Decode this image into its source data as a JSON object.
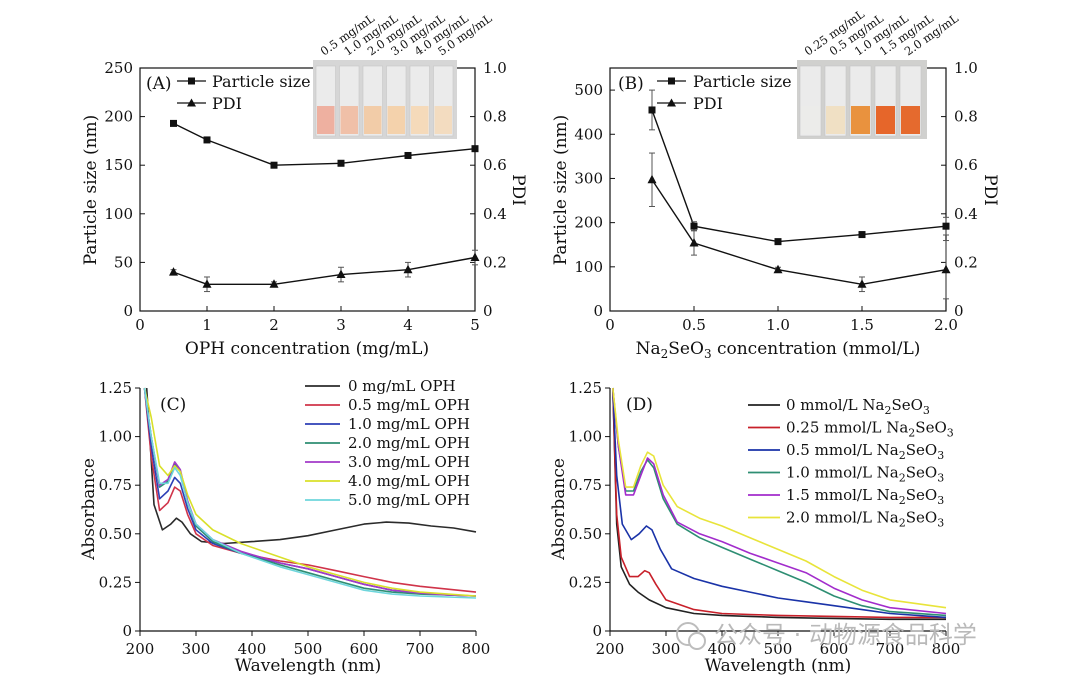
{
  "watermark": "公众号 · 动物源食品科学",
  "chart_data": [
    {
      "id": "A",
      "type": "line",
      "panel_label": "(A)",
      "xlabel": "OPH concentration (mg/mL)",
      "ylabel_left": "Particle size (nm)",
      "ylabel_right": "PDI",
      "xlim": [
        0,
        5
      ],
      "ylim_left": [
        0,
        250
      ],
      "ylim_right": [
        0,
        1.0
      ],
      "x_ticks": [
        "0",
        "1",
        "2",
        "3",
        "4",
        "5"
      ],
      "y_ticks_left": [
        "0",
        "50",
        "100",
        "150",
        "200",
        "250"
      ],
      "y_ticks_right": [
        "0",
        "0.2",
        "0.4",
        "0.6",
        "0.8",
        "1.0"
      ],
      "series": [
        {
          "name": "Particle size",
          "axis": "left",
          "marker": "square",
          "x": [
            0.5,
            1,
            2,
            3,
            4,
            5
          ],
          "values": [
            193,
            176,
            150,
            152,
            160,
            167
          ],
          "errors": [
            0,
            0,
            0,
            0,
            0,
            0
          ]
        },
        {
          "name": "PDI",
          "axis": "right",
          "marker": "triangle",
          "x": [
            0.5,
            1,
            2,
            3,
            4,
            5
          ],
          "values": [
            0.16,
            0.11,
            0.11,
            0.15,
            0.17,
            0.22
          ],
          "errors": [
            0.01,
            0.03,
            0.01,
            0.03,
            0.03,
            0.03
          ]
        }
      ],
      "legend": [
        "Particle size",
        "PDI"
      ],
      "inset_labels": [
        "0.5 mg/mL",
        "1.0 mg/mL",
        "2.0 mg/mL",
        "3.0 mg/mL",
        "4.0 mg/mL",
        "5.0 mg/mL"
      ],
      "inset_vial_colors": [
        "#eeb0a0",
        "#f0c0a8",
        "#f2cca8",
        "#f4d2ac",
        "#f5daba",
        "#f3dcc0"
      ]
    },
    {
      "id": "B",
      "type": "line",
      "panel_label": "(B)",
      "xlabel_parts": [
        "Na",
        "2",
        "SeO",
        "3",
        " concentration (mmol/L)"
      ],
      "ylabel_left": "Particle size (nm)",
      "ylabel_right": "PDI",
      "xlim": [
        0,
        2.0
      ],
      "ylim_left": [
        0,
        550
      ],
      "ylim_right": [
        0,
        1.0
      ],
      "x_ticks": [
        "0",
        "0.5",
        "1.0",
        "1.5",
        "2.0"
      ],
      "x_tick_values": [
        0,
        0.5,
        1.0,
        1.5,
        2.0
      ],
      "y_ticks_left": [
        "0",
        "100",
        "200",
        "300",
        "400",
        "500"
      ],
      "y_tick_left_values": [
        0,
        100,
        200,
        300,
        400,
        500
      ],
      "y_ticks_right": [
        "0",
        "0.2",
        "0.4",
        "0.6",
        "0.8",
        "1.0"
      ],
      "series": [
        {
          "name": "Particle size",
          "axis": "left",
          "marker": "square",
          "x": [
            0.25,
            0.5,
            1.0,
            1.5,
            2.0
          ],
          "values": [
            455,
            192,
            157,
            173,
            192
          ],
          "errors": [
            45,
            10,
            5,
            5,
            20
          ]
        },
        {
          "name": "PDI",
          "axis": "right",
          "marker": "triangle",
          "x": [
            0.25,
            0.5,
            1.0,
            1.5,
            2.0
          ],
          "values": [
            0.54,
            0.28,
            0.17,
            0.11,
            0.17
          ],
          "errors": [
            0.11,
            0.05,
            0.01,
            0.03,
            0.12
          ]
        }
      ],
      "legend": [
        "Particle size",
        "PDI"
      ],
      "inset_labels": [
        "0.25 mg/mL",
        "0.5 mg/mL",
        "1.0 mg/mL",
        "1.5 mg/mL",
        "2.0 mg/mL"
      ],
      "inset_vial_colors": [
        "#ececea",
        "#f0e0c4",
        "#e9923e",
        "#e6662a",
        "#e56a2e"
      ]
    },
    {
      "id": "C",
      "type": "line",
      "panel_label": "(C)",
      "xlabel": "Wavelength (nm)",
      "ylabel": "Absorbance",
      "xlim": [
        200,
        800
      ],
      "ylim": [
        0,
        1.25
      ],
      "x_ticks": [
        "200",
        "300",
        "400",
        "500",
        "600",
        "700",
        "800"
      ],
      "y_ticks": [
        "0",
        "0.25",
        "0.50",
        "0.75",
        "1.00",
        "1.25"
      ],
      "series": [
        {
          "name": "0 mg/mL OPH",
          "color": "#2b2b2b",
          "x": [
            212,
            225,
            240,
            255,
            265,
            275,
            290,
            310,
            350,
            400,
            450,
            500,
            550,
            600,
            640,
            680,
            720,
            760,
            800
          ],
          "values": [
            1.25,
            0.65,
            0.52,
            0.55,
            0.58,
            0.56,
            0.5,
            0.46,
            0.45,
            0.46,
            0.47,
            0.49,
            0.52,
            0.55,
            0.56,
            0.555,
            0.54,
            0.53,
            0.51
          ]
        },
        {
          "name": "0.5 mg/mL OPH",
          "color": "#d0344a",
          "x": [
            208,
            220,
            235,
            250,
            262,
            272,
            285,
            300,
            330,
            380,
            450,
            500,
            550,
            600,
            650,
            700,
            750,
            800
          ],
          "values": [
            1.25,
            0.9,
            0.62,
            0.66,
            0.74,
            0.72,
            0.6,
            0.5,
            0.44,
            0.4,
            0.36,
            0.34,
            0.31,
            0.28,
            0.25,
            0.23,
            0.215,
            0.2
          ]
        },
        {
          "name": "1.0 mg/mL OPH",
          "color": "#2d3fb6",
          "x": [
            208,
            220,
            235,
            250,
            262,
            272,
            285,
            300,
            330,
            380,
            450,
            500,
            550,
            600,
            650,
            700,
            750,
            800
          ],
          "values": [
            1.25,
            0.95,
            0.68,
            0.72,
            0.79,
            0.76,
            0.63,
            0.52,
            0.45,
            0.4,
            0.35,
            0.32,
            0.28,
            0.24,
            0.21,
            0.195,
            0.185,
            0.18
          ]
        },
        {
          "name": "2.0 mg/mL OPH",
          "color": "#2e8e73",
          "x": [
            208,
            220,
            235,
            250,
            262,
            272,
            285,
            300,
            330,
            380,
            450,
            500,
            550,
            600,
            650,
            700,
            750,
            800
          ],
          "values": [
            1.25,
            1.0,
            0.74,
            0.77,
            0.86,
            0.82,
            0.66,
            0.54,
            0.46,
            0.4,
            0.34,
            0.3,
            0.26,
            0.22,
            0.2,
            0.19,
            0.185,
            0.18
          ]
        },
        {
          "name": "3.0 mg/mL OPH",
          "color": "#a33ac8",
          "x": [
            208,
            220,
            235,
            250,
            262,
            272,
            285,
            300,
            330,
            380,
            450,
            500,
            550,
            600,
            650,
            700,
            750,
            800
          ],
          "values": [
            1.25,
            1.0,
            0.75,
            0.78,
            0.87,
            0.83,
            0.67,
            0.55,
            0.47,
            0.41,
            0.35,
            0.32,
            0.28,
            0.24,
            0.21,
            0.195,
            0.185,
            0.18
          ]
        },
        {
          "name": "4.0 mg/mL OPH",
          "color": "#d9e02a",
          "x": [
            208,
            220,
            235,
            250,
            262,
            272,
            285,
            300,
            330,
            380,
            450,
            500,
            550,
            600,
            650,
            700,
            750,
            800
          ],
          "values": [
            1.25,
            1.1,
            0.85,
            0.8,
            0.85,
            0.82,
            0.7,
            0.6,
            0.52,
            0.45,
            0.38,
            0.33,
            0.29,
            0.25,
            0.22,
            0.2,
            0.19,
            0.18
          ]
        },
        {
          "name": "5.0 mg/mL OPH",
          "color": "#6ed6dc",
          "x": [
            208,
            220,
            235,
            250,
            262,
            272,
            285,
            300,
            330,
            380,
            450,
            500,
            550,
            600,
            650,
            700,
            750,
            800
          ],
          "values": [
            1.25,
            1.0,
            0.76,
            0.76,
            0.84,
            0.8,
            0.66,
            0.55,
            0.47,
            0.4,
            0.33,
            0.29,
            0.25,
            0.21,
            0.19,
            0.18,
            0.175,
            0.17
          ]
        }
      ],
      "legend": [
        "0 mg/mL OPH",
        "0.5 mg/mL OPH",
        "1.0 mg/mL OPH",
        "2.0 mg/mL OPH",
        "3.0 mg/mL OPH",
        "4.0 mg/mL OPH",
        "5.0 mg/mL OPH"
      ]
    },
    {
      "id": "D",
      "type": "line",
      "panel_label": "(D)",
      "xlabel": "Wavelength (nm)",
      "ylabel": "Absorbance",
      "xlim": [
        200,
        800
      ],
      "ylim": [
        0,
        1.25
      ],
      "x_ticks": [
        "200",
        "300",
        "400",
        "500",
        "600",
        "700",
        "800"
      ],
      "y_ticks": [
        "0",
        "0.25",
        "0.50",
        "0.75",
        "1.00",
        "1.25"
      ],
      "series": [
        {
          "name": "0 mmol/L Na2SeO3",
          "legend_parts": [
            "0 mmol/L Na",
            "2",
            "SeO",
            "3"
          ],
          "color": "#222222",
          "x": [
            205,
            212,
            220,
            235,
            250,
            270,
            300,
            350,
            400,
            450,
            500,
            600,
            700,
            800
          ],
          "values": [
            1.25,
            0.55,
            0.33,
            0.24,
            0.2,
            0.16,
            0.12,
            0.09,
            0.08,
            0.075,
            0.07,
            0.065,
            0.06,
            0.06
          ]
        },
        {
          "name": "0.25 mmol/L Na2SeO3",
          "legend_parts": [
            "0.25 mmol/L Na",
            "2",
            "SeO",
            "3"
          ],
          "color": "#c8202a",
          "x": [
            205,
            212,
            220,
            235,
            250,
            262,
            270,
            282,
            300,
            350,
            400,
            450,
            500,
            600,
            700,
            800
          ],
          "values": [
            1.25,
            0.6,
            0.38,
            0.28,
            0.28,
            0.31,
            0.3,
            0.24,
            0.16,
            0.11,
            0.09,
            0.085,
            0.08,
            0.075,
            0.07,
            0.07
          ]
        },
        {
          "name": "0.5 mmol/L Na2SeO3",
          "legend_parts": [
            "0.5 mmol/L Na",
            "2",
            "SeO",
            "3"
          ],
          "color": "#1a33a8",
          "x": [
            205,
            212,
            222,
            238,
            252,
            265,
            275,
            290,
            310,
            350,
            400,
            450,
            500,
            550,
            600,
            650,
            700,
            800
          ],
          "values": [
            1.25,
            0.8,
            0.55,
            0.47,
            0.5,
            0.54,
            0.52,
            0.42,
            0.32,
            0.27,
            0.23,
            0.2,
            0.17,
            0.15,
            0.13,
            0.11,
            0.09,
            0.07
          ]
        },
        {
          "name": "1.0 mmol/L Na2SeO3",
          "legend_parts": [
            "1.0 mmol/L Na",
            "2",
            "SeO",
            "3"
          ],
          "color": "#2e8e73",
          "x": [
            205,
            215,
            228,
            242,
            255,
            267,
            278,
            295,
            320,
            360,
            400,
            450,
            500,
            550,
            600,
            650,
            700,
            800
          ],
          "values": [
            1.25,
            0.95,
            0.72,
            0.72,
            0.82,
            0.88,
            0.84,
            0.68,
            0.55,
            0.48,
            0.43,
            0.37,
            0.31,
            0.25,
            0.18,
            0.13,
            0.1,
            0.08
          ]
        },
        {
          "name": "1.5 mmol/L Na2SeO3",
          "legend_parts": [
            "1.5 mmol/L Na",
            "2",
            "SeO",
            "3"
          ],
          "color": "#a22ccc",
          "x": [
            205,
            215,
            228,
            242,
            255,
            267,
            278,
            295,
            320,
            360,
            400,
            450,
            500,
            550,
            600,
            650,
            700,
            800
          ],
          "values": [
            1.25,
            0.95,
            0.7,
            0.7,
            0.8,
            0.89,
            0.86,
            0.7,
            0.56,
            0.5,
            0.46,
            0.4,
            0.35,
            0.3,
            0.22,
            0.16,
            0.12,
            0.09
          ]
        },
        {
          "name": "2.0 mmol/L Na2SeO3",
          "legend_parts": [
            "2.0 mmol/L Na",
            "2",
            "SeO",
            "3"
          ],
          "color": "#e8e43a",
          "x": [
            205,
            215,
            228,
            242,
            255,
            267,
            278,
            295,
            320,
            360,
            400,
            450,
            500,
            550,
            600,
            650,
            700,
            800
          ],
          "values": [
            1.25,
            0.98,
            0.74,
            0.74,
            0.85,
            0.92,
            0.9,
            0.75,
            0.64,
            0.58,
            0.54,
            0.48,
            0.42,
            0.36,
            0.28,
            0.21,
            0.16,
            0.12
          ]
        }
      ]
    }
  ]
}
